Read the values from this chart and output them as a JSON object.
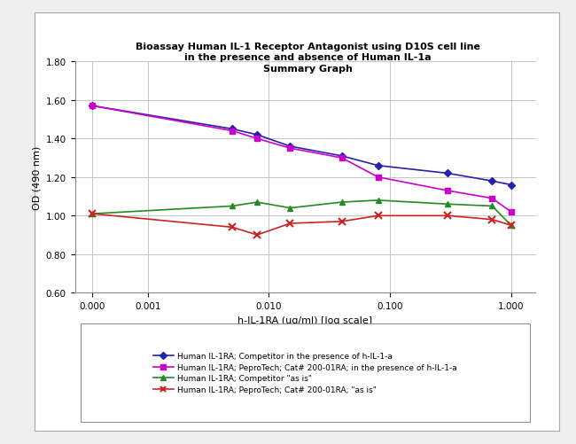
{
  "title_line1": "Bioassay Human IL-1 Receptor Antagonist using D10S cell line",
  "title_line2": "in the presence and absence of Human IL-1a",
  "title_line3": "Summary Graph",
  "xlabel": "h-IL-1RA (ug/ml) [log scale]",
  "ylabel": "OD (490 nm)",
  "ylim": [
    0.6,
    1.8
  ],
  "yticks": [
    0.6,
    0.8,
    1.0,
    1.2,
    1.4,
    1.6,
    1.8
  ],
  "xtick_labels": [
    "0.000",
    "0.001",
    "0.010",
    "0.100",
    "1.000"
  ],
  "xtick_positions": [
    0.00035,
    0.001,
    0.01,
    0.1,
    1.0
  ],
  "xlim_left": 0.00025,
  "xlim_right": 1.6,
  "series": [
    {
      "label": "Human IL-1RA; Competitor in the presence of h-IL-1-a",
      "color": "#2222AA",
      "marker": "D",
      "marker_size": 4,
      "x": [
        0.00035,
        0.005,
        0.008,
        0.015,
        0.04,
        0.08,
        0.3,
        0.7,
        1.0
      ],
      "y": [
        1.57,
        1.45,
        1.42,
        1.36,
        1.31,
        1.26,
        1.22,
        1.18,
        1.16
      ]
    },
    {
      "label": "Human IL-1RA; PeproTech; Cat# 200-01RA; in the presence of h-IL-1-a",
      "color": "#CC00CC",
      "marker": "s",
      "marker_size": 4,
      "x": [
        0.00035,
        0.005,
        0.008,
        0.015,
        0.04,
        0.08,
        0.3,
        0.7,
        1.0
      ],
      "y": [
        1.57,
        1.44,
        1.4,
        1.35,
        1.3,
        1.2,
        1.13,
        1.09,
        1.02
      ]
    },
    {
      "label": "Human IL-1RA; Competitor \"as is\"",
      "color": "#228B22",
      "marker": "^",
      "marker_size": 5,
      "x": [
        0.00035,
        0.005,
        0.008,
        0.015,
        0.04,
        0.08,
        0.3,
        0.7,
        1.0
      ],
      "y": [
        1.01,
        1.05,
        1.07,
        1.04,
        1.07,
        1.08,
        1.06,
        1.05,
        0.95
      ]
    },
    {
      "label": "Human IL-1RA; PeproTech; Cat# 200-01RA; \"as is\"",
      "color": "#CC2222",
      "marker": "x",
      "marker_size": 6,
      "marker_lw": 1.5,
      "x": [
        0.00035,
        0.005,
        0.008,
        0.015,
        0.04,
        0.08,
        0.3,
        0.7,
        1.0
      ],
      "y": [
        1.01,
        0.94,
        0.9,
        0.96,
        0.97,
        1.0,
        1.0,
        0.98,
        0.95
      ]
    }
  ],
  "legend_labels": [
    "Human IL-1RA; Competitor in the presence of h-IL-1-a",
    "Human IL-1RA; PeproTech; Cat# 200-01RA; in the presence of h-IL-1-a",
    "Human IL-1RA; Competitor \"as is\"",
    "Human IL-1RA; PeproTech; Cat# 200-01RA; \"as is\""
  ],
  "background_color": "#FFFFFF",
  "outer_bg": "#EFEFEF",
  "grid_color": "#BBBBBB",
  "line_width": 1.2
}
